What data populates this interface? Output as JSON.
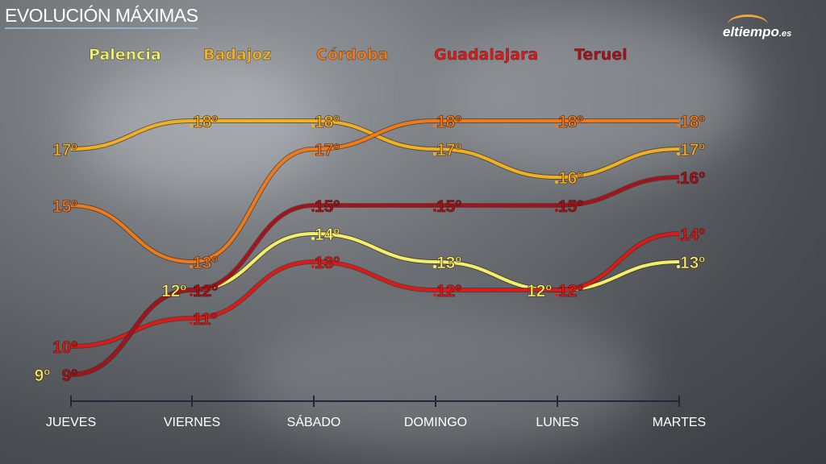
{
  "title": "EVOLUCIÓN MÁXIMAS",
  "logo": {
    "main": "eltiempo",
    "suffix": ".es"
  },
  "chart_data": {
    "type": "line",
    "title": "EVOLUCIÓN MÁXIMAS",
    "categories": [
      "JUEVES",
      "VIERNES",
      "SÁBADO",
      "DOMINGO",
      "LUNES",
      "MARTES"
    ],
    "unit": "º",
    "ylim": [
      9,
      18
    ],
    "grid": false,
    "legend_placement": "top",
    "series": [
      {
        "name": "Palencia",
        "color": "#f2f06a",
        "values": [
          9,
          12,
          14,
          13,
          12,
          13
        ]
      },
      {
        "name": "Badajoz",
        "color": "#f0b020",
        "values": [
          17,
          18,
          18,
          17,
          16,
          17
        ]
      },
      {
        "name": "Córdoba",
        "color": "#f07a1a",
        "values": [
          15,
          13,
          17,
          18,
          18,
          18
        ]
      },
      {
        "name": "Guadalajara",
        "color": "#e01818",
        "values": [
          10,
          11,
          13,
          12,
          12,
          14
        ]
      },
      {
        "name": "Teruel",
        "color": "#a8101a",
        "values": [
          9,
          12,
          15,
          15,
          15,
          16
        ]
      }
    ]
  }
}
